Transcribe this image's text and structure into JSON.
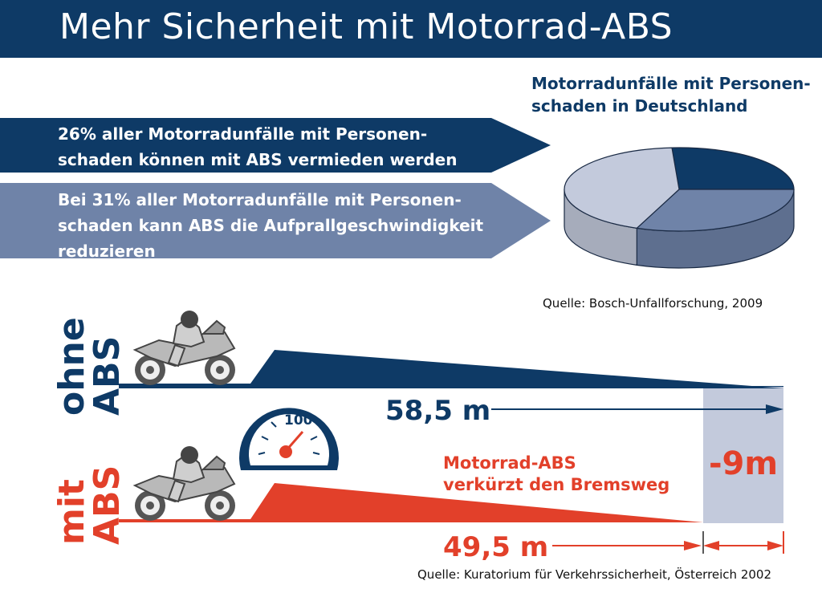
{
  "header": {
    "title": "Mehr Sicherheit mit Motorrad-ABS"
  },
  "chart_data": {
    "type": "pie",
    "title": "Motorradunfälle mit Personen-schaden in Deutschland",
    "slices": [
      {
        "name": "26% aller Motorradunfälle mit Personen-schaden können mit ABS vermieden werden",
        "value": 26,
        "color": "#0e3a66"
      },
      {
        "name": "Bei 31% aller Motorradunfälle mit Personen-schaden kann ABS die Aufprallgeschwindigkeit reduzieren",
        "value": 31,
        "color": "#6f83a8"
      },
      {
        "name": "",
        "value": 43,
        "color": "#c3cadc"
      }
    ]
  },
  "pie": {
    "title_line1": "Motorradunfälle mit Personen-",
    "title_line2": "schaden in Deutschland",
    "source": "Quelle:  Bosch-Unfallforschung, 2009"
  },
  "banners": {
    "b1_line1": "26% aller Motorradunfälle mit Personen-",
    "b1_line2": "schaden können mit ABS vermieden werden",
    "b2_line1": "Bei 31% aller Motorradunfälle mit Personen-",
    "b2_line2": "schaden kann ABS die Aufprallgeschwindigkeit",
    "b2_line3": "reduzieren"
  },
  "braking": {
    "ohne_line1": "ohne",
    "ohne_line2": "ABS",
    "mit_line1": "mit",
    "mit_line2": "ABS",
    "distance_without": "58,5 m",
    "distance_with": "49,5 m",
    "message_line1": "Motorrad-ABS",
    "message_line2": "verkürzt den Bremsweg",
    "difference": "-9m",
    "speed": "100",
    "source": "Quelle: Kuratorium für Verkehrssicherheit, Österreich 2002"
  },
  "colors": {
    "navy": "#0e3a66",
    "slate": "#6f83a8",
    "light": "#c3cadc",
    "red": "#e2402a"
  },
  "icons": [
    "motorcycle-rider-icon",
    "speedometer-icon"
  ]
}
